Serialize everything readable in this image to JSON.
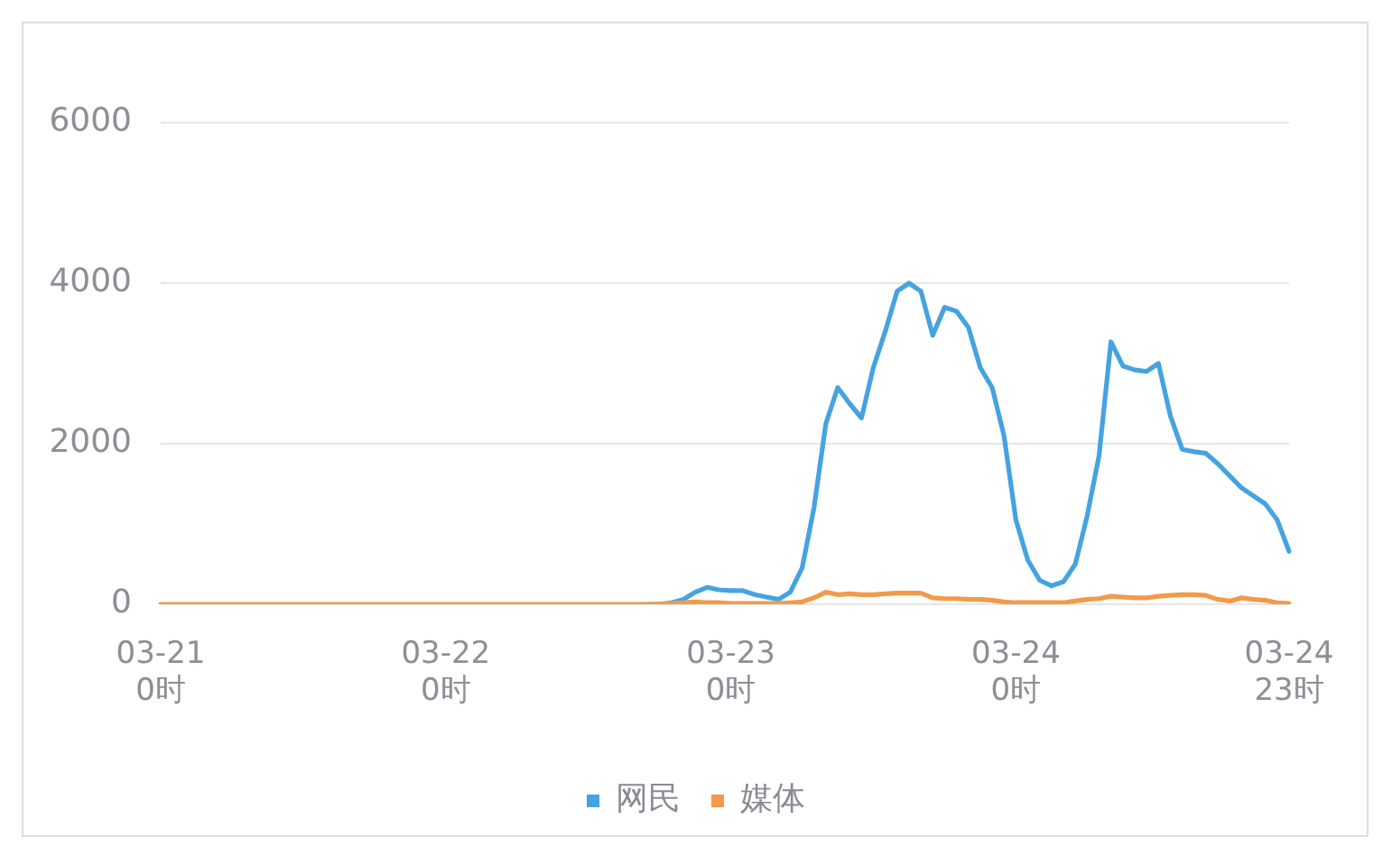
{
  "chart_data": {
    "type": "line",
    "categories": [
      "03-21\n0时",
      null,
      null,
      null,
      null,
      null,
      null,
      null,
      null,
      null,
      null,
      null,
      null,
      null,
      null,
      null,
      null,
      null,
      null,
      null,
      null,
      null,
      null,
      null,
      "03-22\n0时",
      null,
      null,
      null,
      null,
      null,
      null,
      null,
      null,
      null,
      null,
      null,
      null,
      null,
      null,
      null,
      null,
      null,
      null,
      null,
      null,
      null,
      null,
      null,
      "03-23\n0时",
      null,
      null,
      null,
      null,
      null,
      null,
      null,
      null,
      null,
      null,
      null,
      null,
      null,
      null,
      null,
      null,
      null,
      null,
      null,
      null,
      null,
      null,
      null,
      "03-24\n0时",
      null,
      null,
      null,
      null,
      null,
      null,
      null,
      null,
      null,
      null,
      null,
      null,
      null,
      null,
      null,
      null,
      null,
      null,
      null,
      null,
      null,
      null,
      "03-24\n23时"
    ],
    "series": [
      {
        "name": "网民",
        "color": "#44a3e0",
        "values": [
          null,
          null,
          null,
          null,
          null,
          null,
          null,
          null,
          null,
          null,
          null,
          null,
          null,
          null,
          null,
          null,
          null,
          null,
          null,
          null,
          null,
          null,
          null,
          null,
          null,
          null,
          null,
          null,
          null,
          null,
          null,
          null,
          null,
          null,
          null,
          null,
          null,
          null,
          null,
          null,
          null,
          0,
          0,
          20,
          60,
          150,
          210,
          180,
          170,
          170,
          120,
          90,
          60,
          150,
          450,
          1200,
          2250,
          2700,
          2500,
          2320,
          2950,
          3400,
          3900,
          4000,
          3900,
          3350,
          3700,
          3650,
          3450,
          2950,
          2700,
          2100,
          1050,
          550,
          300,
          230,
          280,
          500,
          1100,
          1850,
          3270,
          2970,
          2920,
          2900,
          3000,
          2350,
          1930,
          1900,
          1880,
          1750,
          1600,
          1450,
          1350,
          1250,
          1050,
          660
        ]
      },
      {
        "name": "媒体",
        "color": "#f29a4a",
        "values": [
          0,
          0,
          0,
          0,
          0,
          0,
          0,
          0,
          0,
          0,
          0,
          0,
          0,
          0,
          0,
          0,
          0,
          0,
          0,
          0,
          0,
          0,
          0,
          0,
          0,
          0,
          0,
          0,
          0,
          0,
          0,
          0,
          0,
          0,
          0,
          0,
          0,
          0,
          0,
          0,
          0,
          0,
          0,
          10,
          20,
          30,
          20,
          20,
          10,
          10,
          10,
          10,
          10,
          20,
          30,
          80,
          150,
          120,
          130,
          120,
          120,
          130,
          140,
          140,
          140,
          80,
          70,
          70,
          60,
          60,
          50,
          30,
          20,
          20,
          20,
          20,
          20,
          40,
          60,
          70,
          100,
          90,
          80,
          80,
          100,
          110,
          120,
          120,
          110,
          60,
          40,
          80,
          60,
          50,
          20,
          10
        ]
      }
    ],
    "ylim": [
      0,
      6000
    ],
    "yticks": [
      0,
      2000,
      4000,
      6000
    ],
    "grid": "y",
    "legend": "bottom",
    "marker": "none",
    "line_style": "solid"
  }
}
